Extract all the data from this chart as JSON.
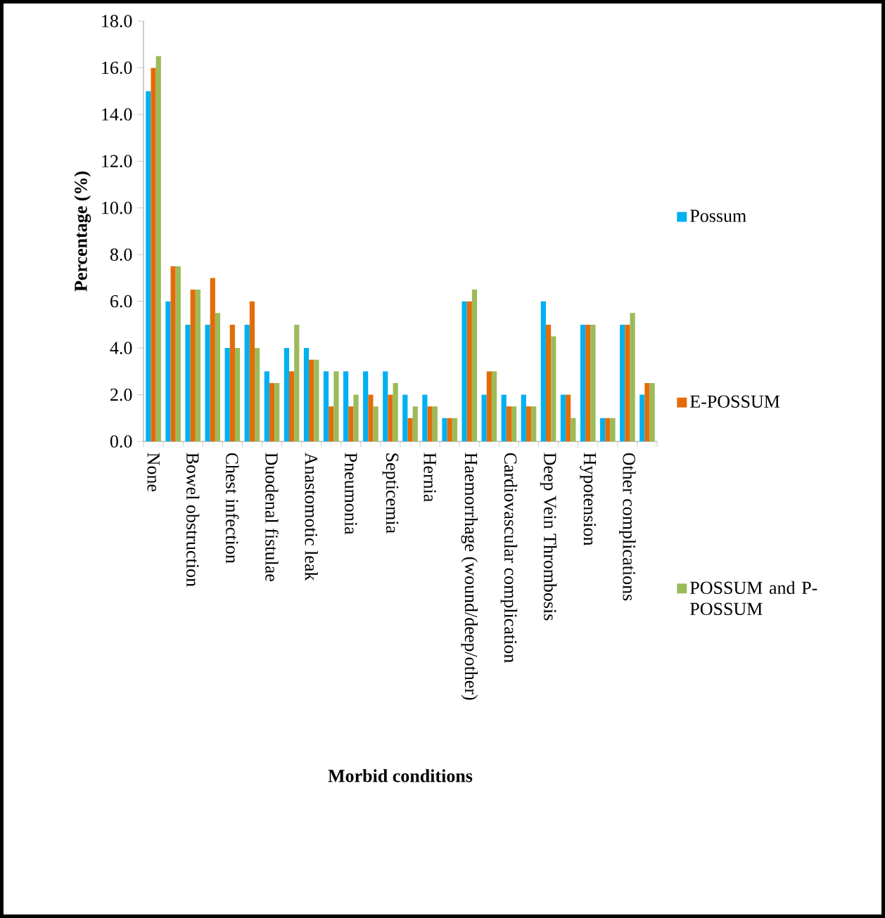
{
  "chart_data": {
    "type": "bar",
    "xlabel": "Morbid conditions",
    "ylabel": "Percentage (%)",
    "categories": [
      "None",
      null,
      "Bowel obstruction",
      null,
      "Chest infection",
      null,
      "Duodenal fistulae",
      null,
      "Anastomotic leak",
      null,
      "Pneumonia",
      null,
      "Septicemia",
      null,
      "Hernia",
      null,
      "Haemorrhage (wound/deep/other)",
      null,
      "Cardiovascular complication",
      null,
      "Deep Vein Thrombosis",
      null,
      "Hypotension",
      null,
      "Other complications",
      null
    ],
    "series": [
      {
        "name": "Possum",
        "color": "#00b0f0",
        "values": [
          15,
          6,
          5,
          5,
          4,
          5,
          3,
          4,
          4,
          3,
          3,
          3,
          3,
          2,
          2,
          1,
          6,
          2,
          2,
          2,
          6,
          2,
          5,
          1,
          5,
          2
        ]
      },
      {
        "name": "E-POSSUM",
        "color": "#e36c09",
        "values": [
          16,
          7.5,
          6.5,
          7,
          5,
          6,
          2.5,
          3,
          3.5,
          1.5,
          1.5,
          2,
          2,
          1,
          1.5,
          1,
          6,
          3,
          1.5,
          1.5,
          5,
          2,
          5,
          1,
          5,
          2.5
        ]
      },
      {
        "name": "POSSUM and P-POSSUM",
        "color": "#9bbb59",
        "values": [
          16.5,
          7.5,
          6.5,
          5.5,
          4,
          4,
          2.5,
          5,
          3.5,
          3,
          2,
          1.5,
          2.5,
          1.5,
          1.5,
          1,
          6.5,
          3,
          1.5,
          1.5,
          4.5,
          1,
          5,
          1,
          5.5,
          2.5
        ]
      }
    ],
    "ylim": [
      0,
      18
    ],
    "yticks": [
      {
        "value": 0,
        "label": "0.0"
      },
      {
        "value": 2,
        "label": "2.0"
      },
      {
        "value": 4,
        "label": "4.0"
      },
      {
        "value": 6,
        "label": "6.0"
      },
      {
        "value": 8,
        "label": "8.0"
      },
      {
        "value": 10,
        "label": "10.0"
      },
      {
        "value": 12,
        "label": "12.0"
      },
      {
        "value": 14,
        "label": "14.0"
      },
      {
        "value": 16,
        "label": "16.0"
      },
      {
        "value": 18,
        "label": "18.0"
      }
    ],
    "grid": false,
    "legend": "right"
  }
}
